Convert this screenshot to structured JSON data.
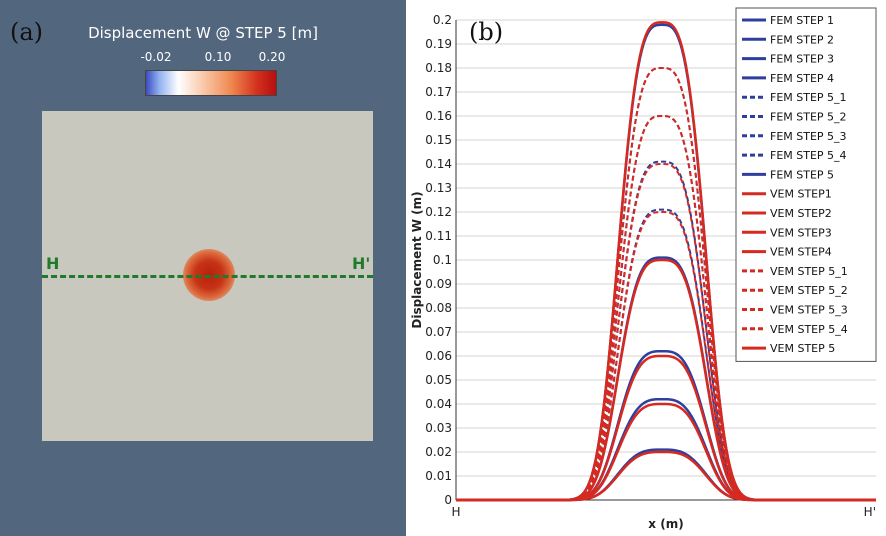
{
  "panel_a": {
    "label": "(a)",
    "colorbar_title": "Displacement W @ STEP 5 [m]",
    "colorbar_ticks": [
      "-0.02",
      "0.10",
      "0.20"
    ],
    "section_start": "H",
    "section_end": "H'",
    "section_line_color": "#1f7a2a"
  },
  "panel_b": {
    "label": "(b)"
  },
  "chart_data": {
    "type": "line",
    "xlabel": "x (m)",
    "ylabel": "Displacement W (m)",
    "ylim": [
      0,
      0.2
    ],
    "yticks": [
      "0",
      "0.01",
      "0.02",
      "0.03",
      "0.04",
      "0.05",
      "0.06",
      "0.07",
      "0.08",
      "0.09",
      "0.1",
      "0.11",
      "0.12",
      "0.13",
      "0.14",
      "0.15",
      "0.16",
      "0.17",
      "0.18",
      "0.19",
      "0.2"
    ],
    "xticks": [
      "H",
      "H'"
    ],
    "grid": true,
    "legend_position": "top-right",
    "series": [
      {
        "name": "FEM STEP 1",
        "peak": 0.021,
        "color": "#2e3f9e",
        "dashed": false
      },
      {
        "name": "FEM STEP 2",
        "peak": 0.042,
        "color": "#2e3f9e",
        "dashed": false
      },
      {
        "name": "FEM STEP 3",
        "peak": 0.062,
        "color": "#2e3f9e",
        "dashed": false
      },
      {
        "name": "FEM STEP 4",
        "peak": 0.101,
        "color": "#2e3f9e",
        "dashed": false
      },
      {
        "name": "FEM STEP 5_1",
        "peak": 0.121,
        "color": "#2e3f9e",
        "dashed": true
      },
      {
        "name": "FEM STEP 5_2",
        "peak": 0.141,
        "color": "#2e3f9e",
        "dashed": true
      },
      {
        "name": "FEM STEP 5_3",
        "peak": 0.16,
        "color": "#2e3f9e",
        "dashed": true
      },
      {
        "name": "FEM STEP 5_4",
        "peak": 0.18,
        "color": "#2e3f9e",
        "dashed": true
      },
      {
        "name": "FEM STEP 5",
        "peak": 0.198,
        "color": "#2e3f9e",
        "dashed": false
      },
      {
        "name": "VEM STEP1",
        "peak": 0.02,
        "color": "#d62a20",
        "dashed": false
      },
      {
        "name": "VEM STEP2",
        "peak": 0.04,
        "color": "#d62a20",
        "dashed": false
      },
      {
        "name": "VEM STEP3",
        "peak": 0.06,
        "color": "#d62a20",
        "dashed": false
      },
      {
        "name": "VEM STEP4",
        "peak": 0.1,
        "color": "#d62a20",
        "dashed": false
      },
      {
        "name": "VEM STEP 5_1",
        "peak": 0.12,
        "color": "#d62a20",
        "dashed": true
      },
      {
        "name": "VEM STEP 5_2",
        "peak": 0.14,
        "color": "#d62a20",
        "dashed": true
      },
      {
        "name": "VEM STEP 5_3",
        "peak": 0.16,
        "color": "#d62a20",
        "dashed": true
      },
      {
        "name": "VEM STEP 5_4",
        "peak": 0.18,
        "color": "#d62a20",
        "dashed": true
      },
      {
        "name": "VEM STEP 5",
        "peak": 0.199,
        "color": "#d62a20",
        "dashed": false
      }
    ]
  }
}
